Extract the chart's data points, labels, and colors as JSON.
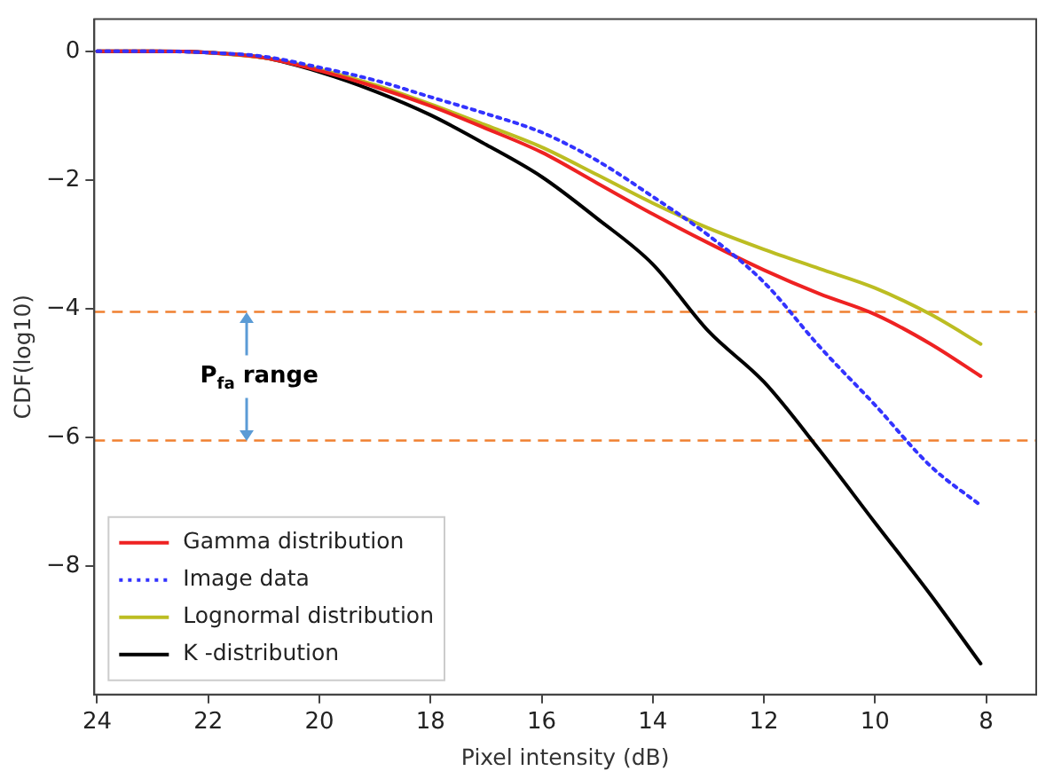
{
  "chart_data": {
    "type": "line",
    "xlabel": "Pixel intensity (dB)",
    "ylabel": "CDF(log10)",
    "x": [
      24,
      23,
      22,
      21,
      20,
      19,
      18,
      17,
      16,
      15,
      14,
      13,
      12,
      11,
      10,
      9,
      8.1
    ],
    "xlim": [
      24.05,
      7.1
    ],
    "xticks": [
      24,
      22,
      20,
      18,
      16,
      14,
      12,
      10,
      8
    ],
    "ylim": [
      -10,
      0.5
    ],
    "yticks": [
      -8,
      -6,
      -4,
      -2,
      0
    ],
    "series": [
      {
        "name": "Gamma distribution",
        "color": "#ee2222",
        "line_style": "solid",
        "values": [
          0,
          0,
          -0.02,
          -0.1,
          -0.3,
          -0.55,
          -0.85,
          -1.2,
          -1.57,
          -2.05,
          -2.53,
          -2.98,
          -3.4,
          -3.77,
          -4.09,
          -4.55,
          -5.05
        ]
      },
      {
        "name": "Image data",
        "color": "#3333ff",
        "line_style": "dotted",
        "values": [
          0,
          0,
          -0.02,
          -0.08,
          -0.25,
          -0.45,
          -0.71,
          -0.97,
          -1.26,
          -1.7,
          -2.26,
          -2.86,
          -3.59,
          -4.59,
          -5.5,
          -6.45,
          -7.06
        ]
      },
      {
        "name": "Lognormal distribution",
        "color": "#bcbd22",
        "line_style": "solid",
        "values": [
          null,
          null,
          -0.02,
          -0.1,
          -0.28,
          -0.52,
          -0.82,
          -1.15,
          -1.49,
          -1.92,
          -2.36,
          -2.75,
          -3.08,
          -3.38,
          -3.68,
          -4.09,
          -4.55
        ]
      },
      {
        "name": "K -distribution",
        "color": "#000000",
        "line_style": "solid",
        "values": [
          0,
          0,
          -0.02,
          -0.1,
          -0.32,
          -0.62,
          -0.99,
          -1.45,
          -1.95,
          -2.6,
          -3.31,
          -4.35,
          -5.14,
          -6.2,
          -7.33,
          -8.45,
          -9.52
        ]
      }
    ],
    "ref_lines": [
      {
        "axis": "y",
        "value": -4.05,
        "color": "#f08030",
        "line_style": "dashed"
      },
      {
        "axis": "y",
        "value": -6.05,
        "color": "#f08030",
        "line_style": "dashed"
      }
    ],
    "annotations": [
      "P$_{fa}$ range"
    ],
    "marker": "none",
    "grid": false,
    "legend": "bottom left"
  }
}
